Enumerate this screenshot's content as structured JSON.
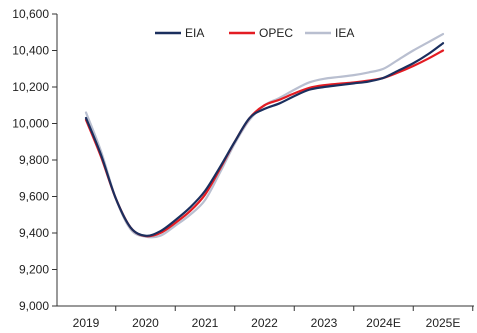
{
  "chart_data": {
    "type": "line",
    "title": "",
    "xlabel": "",
    "ylabel": "",
    "categories": [
      "2019",
      "2020",
      "2021",
      "2022",
      "2023",
      "2024E",
      "2025E"
    ],
    "ylim": [
      9000,
      10600
    ],
    "yticks": [
      9000,
      9200,
      9400,
      9600,
      9800,
      10000,
      10200,
      10400,
      10600
    ],
    "ytick_labels": [
      "9,000",
      "9,200",
      "9,400",
      "9,600",
      "9,800",
      "10,000",
      "10,200",
      "10,400",
      "10,600"
    ],
    "grid": false,
    "legend": "top",
    "series": [
      {
        "name": "EIA",
        "color": "#1b2f5e",
        "points": [
          [
            0,
            10030
          ],
          [
            0.25,
            9830
          ],
          [
            0.5,
            9590
          ],
          [
            0.75,
            9430
          ],
          [
            1,
            9385
          ],
          [
            1.25,
            9410
          ],
          [
            1.5,
            9470
          ],
          [
            1.75,
            9540
          ],
          [
            2,
            9630
          ],
          [
            2.25,
            9760
          ],
          [
            2.5,
            9900
          ],
          [
            2.75,
            10030
          ],
          [
            3,
            10080
          ],
          [
            3.25,
            10110
          ],
          [
            3.5,
            10150
          ],
          [
            3.75,
            10185
          ],
          [
            4,
            10200
          ],
          [
            4.25,
            10210
          ],
          [
            4.5,
            10220
          ],
          [
            4.75,
            10230
          ],
          [
            5,
            10250
          ],
          [
            5.25,
            10290
          ],
          [
            5.5,
            10330
          ],
          [
            5.75,
            10380
          ],
          [
            6,
            10440
          ]
        ]
      },
      {
        "name": "OPEC",
        "color": "#e31c23",
        "points": [
          [
            0,
            10020
          ],
          [
            0.25,
            9820
          ],
          [
            0.5,
            9590
          ],
          [
            0.75,
            9430
          ],
          [
            1,
            9383
          ],
          [
            1.25,
            9400
          ],
          [
            1.5,
            9455
          ],
          [
            1.75,
            9520
          ],
          [
            2,
            9610
          ],
          [
            2.25,
            9750
          ],
          [
            2.5,
            9900
          ],
          [
            2.75,
            10030
          ],
          [
            3,
            10100
          ],
          [
            3.25,
            10130
          ],
          [
            3.5,
            10165
          ],
          [
            3.75,
            10195
          ],
          [
            4,
            10210
          ],
          [
            4.25,
            10218
          ],
          [
            4.5,
            10225
          ],
          [
            4.75,
            10235
          ],
          [
            5,
            10250
          ],
          [
            5.25,
            10280
          ],
          [
            5.5,
            10315
          ],
          [
            5.75,
            10355
          ],
          [
            6,
            10400
          ]
        ]
      },
      {
        "name": "IEA",
        "color": "#b9bfd0",
        "points": [
          [
            0,
            10060
          ],
          [
            0.25,
            9850
          ],
          [
            0.5,
            9590
          ],
          [
            0.75,
            9420
          ],
          [
            1,
            9380
          ],
          [
            1.25,
            9385
          ],
          [
            1.5,
            9440
          ],
          [
            1.75,
            9500
          ],
          [
            2,
            9580
          ],
          [
            2.25,
            9730
          ],
          [
            2.5,
            9890
          ],
          [
            2.75,
            10020
          ],
          [
            3,
            10100
          ],
          [
            3.25,
            10140
          ],
          [
            3.5,
            10185
          ],
          [
            3.75,
            10225
          ],
          [
            4,
            10245
          ],
          [
            4.25,
            10255
          ],
          [
            4.5,
            10265
          ],
          [
            4.75,
            10280
          ],
          [
            5,
            10300
          ],
          [
            5.25,
            10350
          ],
          [
            5.5,
            10400
          ],
          [
            5.75,
            10445
          ],
          [
            6,
            10490
          ]
        ]
      }
    ]
  }
}
